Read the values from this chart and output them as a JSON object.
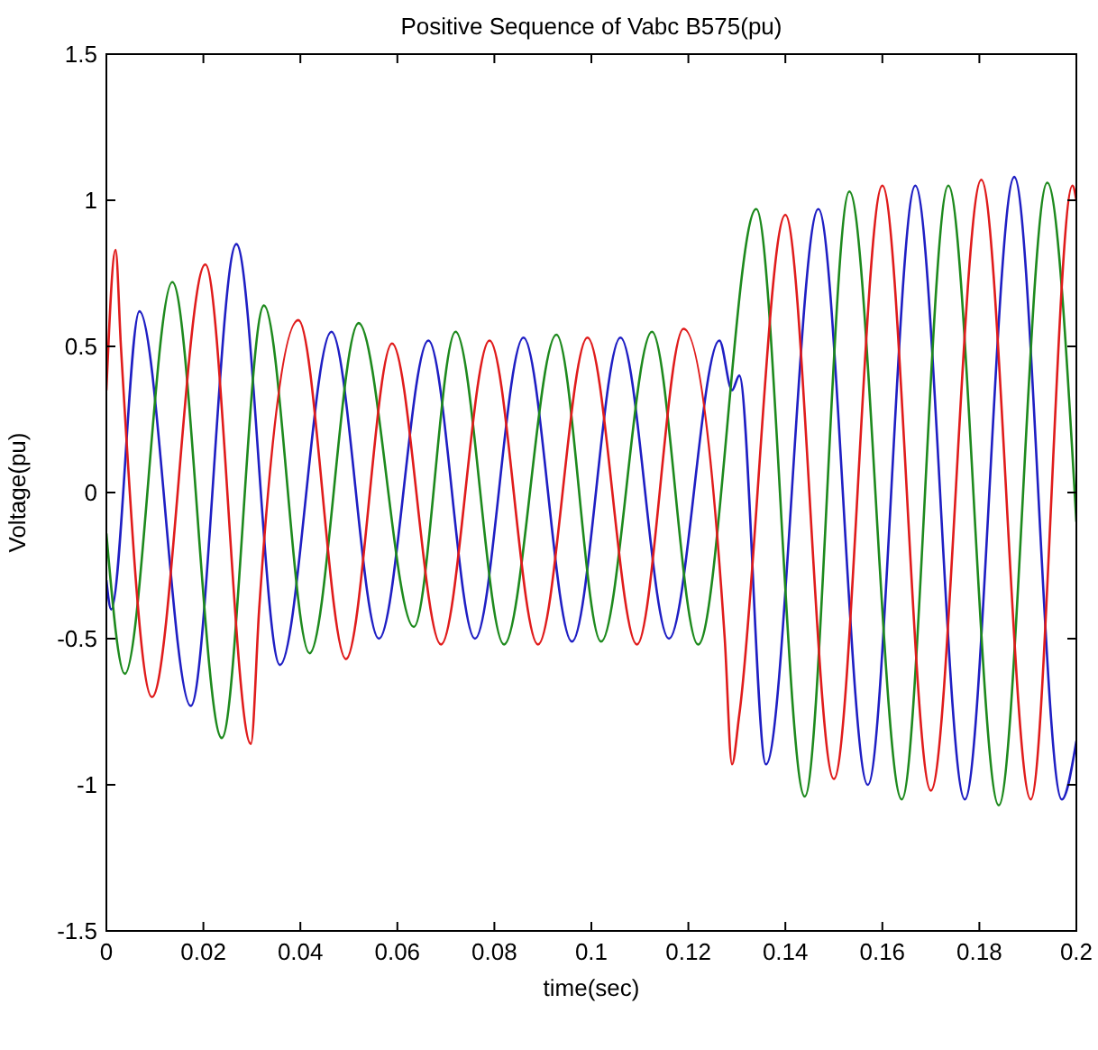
{
  "chart_data": {
    "type": "line",
    "title": "Positive Sequence of Vabc B575(pu)",
    "xlabel": "time(sec)",
    "ylabel": "Voltage(pu)",
    "xlim": [
      0,
      0.2
    ],
    "ylim": [
      -1.5,
      1.5
    ],
    "xticks": [
      0,
      0.02,
      0.04,
      0.06,
      0.08,
      0.1,
      0.12,
      0.14,
      0.16,
      0.18,
      0.2
    ],
    "yticks": [
      -1.5,
      -1,
      -0.5,
      0,
      0.5,
      1,
      1.5
    ],
    "grid": false,
    "line_style": "solid",
    "series": [
      {
        "color": "#1f1fc4",
        "x": [
          0,
          0.001,
          0.0068,
          0.0174,
          0.0268,
          0.0358,
          0.0464,
          0.0562,
          0.0664,
          0.076,
          0.086,
          0.096,
          0.106,
          0.116,
          0.1264,
          0.129,
          0.1305,
          0.136,
          0.1468,
          0.157,
          0.1668,
          0.177,
          0.1872,
          0.197,
          0.2
        ],
        "values": [
          -0.3,
          -0.4,
          0.62,
          -0.73,
          0.85,
          -0.59,
          0.55,
          -0.5,
          0.52,
          -0.5,
          0.53,
          -0.51,
          0.53,
          -0.5,
          0.52,
          0.35,
          0.4,
          -0.93,
          0.97,
          -1,
          1.05,
          -1.05,
          1.08,
          -1.05,
          -0.85
        ]
      },
      {
        "color": "#1e8a1e",
        "x": [
          0,
          0.0038,
          0.0136,
          0.0238,
          0.0325,
          0.0419,
          0.052,
          0.0634,
          0.072,
          0.082,
          0.0928,
          0.102,
          0.1125,
          0.122,
          0.134,
          0.144,
          0.1532,
          0.164,
          0.1736,
          0.184,
          0.194,
          0.2
        ],
        "values": [
          -0.14,
          -0.62,
          0.72,
          -0.84,
          0.64,
          -0.55,
          0.58,
          -0.46,
          0.55,
          -0.52,
          0.54,
          -0.51,
          0.55,
          -0.52,
          0.97,
          -1.04,
          1.03,
          -1.05,
          1.05,
          -1.07,
          1.06,
          -0.1
        ]
      },
      {
        "color": "#e01c1c",
        "x": [
          0,
          0.0019,
          0.003,
          0.0094,
          0.0204,
          0.0298,
          0.0315,
          0.0396,
          0.0494,
          0.0589,
          0.069,
          0.079,
          0.089,
          0.0992,
          0.1094,
          0.119,
          0.1275,
          0.129,
          0.1305,
          0.14,
          0.15,
          0.16,
          0.17,
          0.1804,
          0.1906,
          0.1992,
          0.2
        ],
        "values": [
          0.35,
          0.83,
          0.5,
          -0.7,
          0.78,
          -0.86,
          -0.4,
          0.59,
          -0.57,
          0.51,
          -0.52,
          0.52,
          -0.52,
          0.53,
          -0.52,
          0.56,
          -0.5,
          -0.93,
          -0.76,
          0.95,
          -0.98,
          1.05,
          -1.02,
          1.07,
          -1.05,
          1.05,
          1
        ]
      }
    ]
  }
}
